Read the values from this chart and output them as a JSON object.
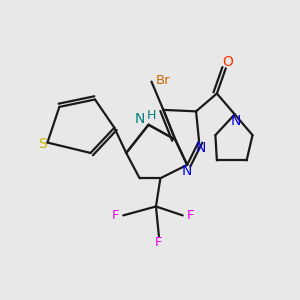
{
  "background_color": "#e8e8e8",
  "bond_color": "#1a1a1a",
  "atom_colors": {
    "S": "#c8b400",
    "N": "#0000ee",
    "NH": "#008080",
    "O": "#ff3300",
    "Br": "#cc6600",
    "F": "#ee00ee",
    "C": "#1a1a1a"
  },
  "lw": 1.6
}
